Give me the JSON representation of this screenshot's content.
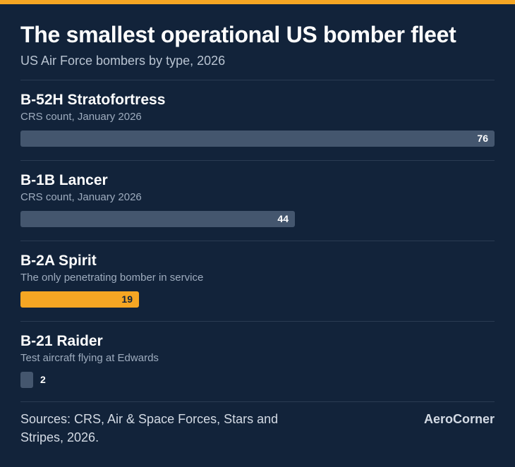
{
  "title": "The smallest operational US bomber fleet",
  "subtitle": "US Air Force bombers by type, 2026",
  "chart_data": {
    "type": "bar",
    "orientation": "horizontal",
    "categories": [
      "B-52H Stratofortress",
      "B-1B Lancer",
      "B-2A Spirit",
      "B-21 Raider"
    ],
    "descriptions": [
      "CRS count, January 2026",
      "CRS count, January 2026",
      "The only penetrating bomber in service",
      "Test aircraft flying at Edwards"
    ],
    "values": [
      76,
      44,
      19,
      2
    ],
    "highlight_index": 2,
    "xlim": [
      0,
      76
    ],
    "colors": {
      "bar": "#44566e",
      "highlight": "#f5a623"
    }
  },
  "footer": {
    "source": "Sources: CRS, Air & Space Forces, Stars and Stripes, 2026.",
    "brand": "AeroCorner"
  }
}
